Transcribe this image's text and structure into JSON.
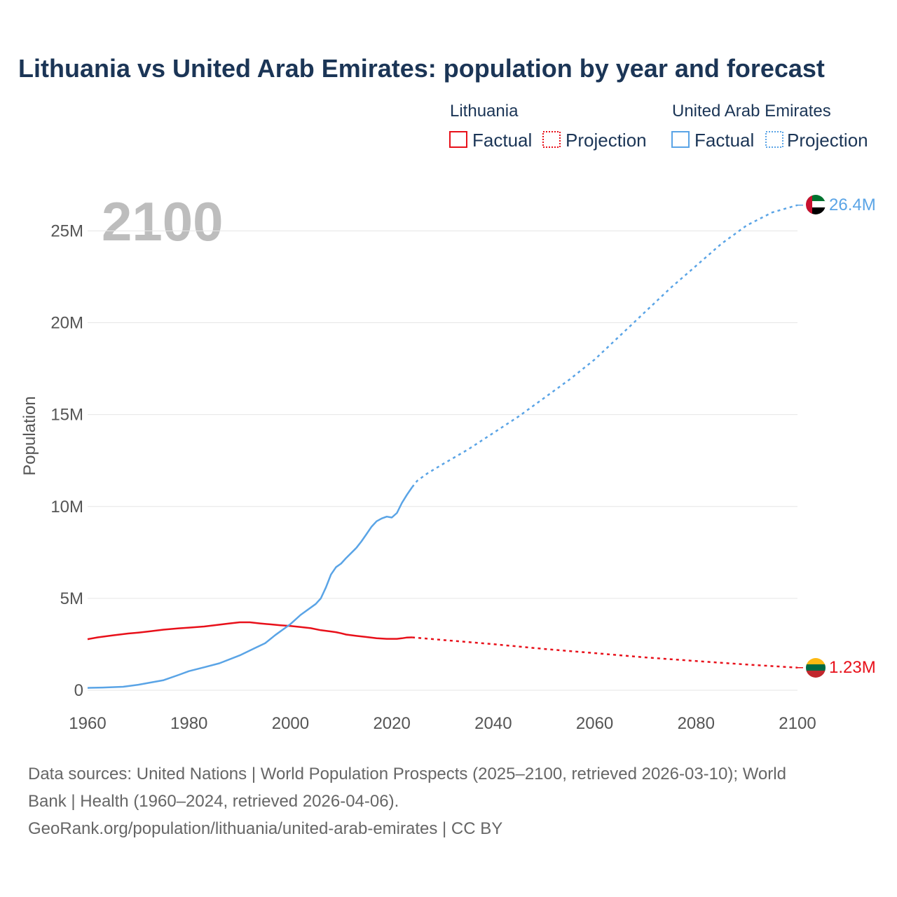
{
  "colors": {
    "lithuania": "#e8101a",
    "uae": "#5aa4e6",
    "title": "#1b3556",
    "grid": "#e6e6e6",
    "tick": "#555555",
    "year_label": "#bdbdbd",
    "footer": "#666666"
  },
  "chart_data": {
    "type": "line",
    "title": "Lithuania vs United Arab Emirates: population by year and forecast",
    "ylabel": "Population",
    "xlabel": "",
    "xlim": [
      1960,
      2100
    ],
    "ylim": [
      0,
      27000000
    ],
    "x_ticks": [
      1960,
      1980,
      2000,
      2020,
      2040,
      2060,
      2080,
      2100
    ],
    "y_ticks": [
      {
        "value": 0,
        "label": "0"
      },
      {
        "value": 5000000,
        "label": "5M"
      },
      {
        "value": 10000000,
        "label": "10M"
      },
      {
        "value": 15000000,
        "label": "15M"
      },
      {
        "value": 20000000,
        "label": "20M"
      },
      {
        "value": 25000000,
        "label": "25M"
      }
    ],
    "grid": true,
    "current_year": "2100",
    "legend": {
      "groups": [
        {
          "name": "Lithuania",
          "factual": "Factual",
          "projection": "Projection"
        },
        {
          "name": "United Arab Emirates",
          "factual": "Factual",
          "projection": "Projection"
        }
      ]
    },
    "series": [
      {
        "name": "Lithuania",
        "end_label": "1.23M",
        "factual": [
          [
            1960,
            2780000
          ],
          [
            1962,
            2880000
          ],
          [
            1965,
            2990000
          ],
          [
            1968,
            3090000
          ],
          [
            1970,
            3140000
          ],
          [
            1972,
            3200000
          ],
          [
            1975,
            3300000
          ],
          [
            1978,
            3370000
          ],
          [
            1980,
            3410000
          ],
          [
            1983,
            3470000
          ],
          [
            1985,
            3540000
          ],
          [
            1988,
            3640000
          ],
          [
            1990,
            3700000
          ],
          [
            1992,
            3700000
          ],
          [
            1994,
            3640000
          ],
          [
            1996,
            3590000
          ],
          [
            1998,
            3540000
          ],
          [
            2000,
            3500000
          ],
          [
            2002,
            3440000
          ],
          [
            2004,
            3380000
          ],
          [
            2006,
            3270000
          ],
          [
            2008,
            3200000
          ],
          [
            2009,
            3160000
          ],
          [
            2010,
            3100000
          ],
          [
            2011,
            3030000
          ],
          [
            2013,
            2960000
          ],
          [
            2015,
            2900000
          ],
          [
            2017,
            2830000
          ],
          [
            2019,
            2800000
          ],
          [
            2021,
            2800000
          ],
          [
            2022,
            2830000
          ],
          [
            2023,
            2870000
          ],
          [
            2024,
            2880000
          ]
        ],
        "projection": [
          [
            2024,
            2880000
          ],
          [
            2030,
            2740000
          ],
          [
            2040,
            2510000
          ],
          [
            2050,
            2250000
          ],
          [
            2060,
            2020000
          ],
          [
            2070,
            1790000
          ],
          [
            2080,
            1590000
          ],
          [
            2090,
            1400000
          ],
          [
            2100,
            1230000
          ]
        ]
      },
      {
        "name": "United Arab Emirates",
        "end_label": "26.4M",
        "factual": [
          [
            1960,
            130000
          ],
          [
            1963,
            150000
          ],
          [
            1967,
            190000
          ],
          [
            1970,
            300000
          ],
          [
            1972,
            400000
          ],
          [
            1975,
            550000
          ],
          [
            1978,
            840000
          ],
          [
            1980,
            1040000
          ],
          [
            1983,
            1250000
          ],
          [
            1986,
            1470000
          ],
          [
            1990,
            1900000
          ],
          [
            1993,
            2300000
          ],
          [
            1995,
            2560000
          ],
          [
            1997,
            3000000
          ],
          [
            2000,
            3600000
          ],
          [
            2002,
            4100000
          ],
          [
            2005,
            4700000
          ],
          [
            2006,
            5000000
          ],
          [
            2007,
            5600000
          ],
          [
            2008,
            6300000
          ],
          [
            2009,
            6700000
          ],
          [
            2010,
            6900000
          ],
          [
            2011,
            7200000
          ],
          [
            2013,
            7750000
          ],
          [
            2014,
            8100000
          ],
          [
            2015,
            8500000
          ],
          [
            2016,
            8900000
          ],
          [
            2017,
            9200000
          ],
          [
            2018,
            9350000
          ],
          [
            2019,
            9450000
          ],
          [
            2020,
            9400000
          ],
          [
            2021,
            9650000
          ],
          [
            2022,
            10200000
          ],
          [
            2023,
            10650000
          ],
          [
            2024,
            11050000
          ]
        ],
        "projection": [
          [
            2024,
            11050000
          ],
          [
            2025,
            11400000
          ],
          [
            2027,
            11800000
          ],
          [
            2030,
            12300000
          ],
          [
            2035,
            13100000
          ],
          [
            2040,
            14000000
          ],
          [
            2045,
            14900000
          ],
          [
            2050,
            15900000
          ],
          [
            2055,
            16900000
          ],
          [
            2060,
            18000000
          ],
          [
            2065,
            19300000
          ],
          [
            2070,
            20600000
          ],
          [
            2075,
            21900000
          ],
          [
            2080,
            23100000
          ],
          [
            2085,
            24300000
          ],
          [
            2090,
            25300000
          ],
          [
            2095,
            26000000
          ],
          [
            2100,
            26400000
          ]
        ]
      }
    ]
  },
  "footer": {
    "line1": "Data sources: United Nations | World Population Prospects (2025–2100, retrieved 2026-03-10); World",
    "line2": "Bank | Health (1960–2024, retrieved 2026-04-06).",
    "line3": "GeoRank.org/population/lithuania/united-arab-emirates | CC BY"
  }
}
